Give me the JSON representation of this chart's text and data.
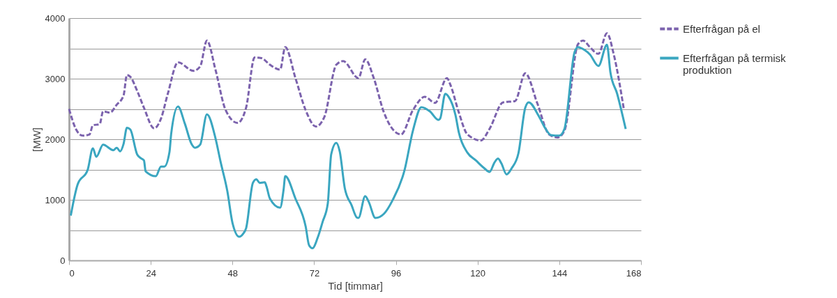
{
  "chart_data": {
    "type": "line",
    "xlabel": "Tid [timmar]",
    "ylabel": "[MW]",
    "xlim": [
      0,
      168
    ],
    "xticks": [
      0,
      24,
      48,
      72,
      96,
      120,
      144,
      168
    ],
    "ylim": [
      0,
      4000
    ],
    "yticks": [
      0,
      {
        "value": 500,
        "label": null
      },
      1000,
      {
        "value": 1500,
        "label": null
      },
      2000,
      {
        "value": 2500,
        "label": null
      },
      3000,
      {
        "value": 3500,
        "label": null
      },
      4000
    ],
    "grid": "y",
    "legend": "right",
    "series": [
      {
        "name": "Efterfrågan på el",
        "color": "#7b62ad",
        "line_style": "dashed",
        "x": [
          0,
          2,
          4,
          6,
          7,
          9,
          10,
          12,
          14,
          16,
          17,
          18,
          20,
          22,
          25,
          27,
          29,
          32,
          36.5,
          38.5,
          40.5,
          43,
          46,
          49.5,
          52,
          54.5,
          56.5,
          59,
          62,
          63.5,
          66.5,
          69.5,
          72.5,
          75,
          78.5,
          80.5,
          85,
          87,
          89.5,
          92.5,
          97.5,
          101,
          104.5,
          107.5,
          111,
          112,
          114.5,
          117,
          121,
          123.5,
          127.5,
          131,
          134,
          137.5,
          141,
          143.5,
          145.5,
          149.5,
          151,
          153,
          155.5,
          158,
          160,
          163
        ],
        "values": [
          2500,
          2170,
          2060,
          2080,
          2230,
          2250,
          2460,
          2440,
          2570,
          2720,
          3060,
          3030,
          2800,
          2520,
          2180,
          2340,
          2750,
          3270,
          3130,
          3200,
          3630,
          3150,
          2480,
          2270,
          2520,
          3350,
          3340,
          3230,
          3150,
          3520,
          3010,
          2480,
          2210,
          2370,
          3230,
          3290,
          3010,
          3320,
          3010,
          2440,
          2080,
          2480,
          2700,
          2600,
          3010,
          2900,
          2440,
          2080,
          1980,
          2170,
          2610,
          2630,
          3090,
          2600,
          2080,
          2030,
          2140,
          3570,
          3630,
          3520,
          3410,
          3750,
          3400,
          2480
        ]
      },
      {
        "name": "Efterfrågan på termisk produktion",
        "color": "#3aa6c0",
        "line_style": "solid",
        "x": [
          0.5,
          2.5,
          5.5,
          7,
          8,
          10,
          13,
          14,
          15,
          16,
          17,
          18,
          20,
          21,
          22,
          22.5,
          25.5,
          27,
          28,
          29.5,
          30,
          32,
          34,
          36,
          37,
          38.5,
          40.5,
          43,
          44.5,
          46.5,
          48,
          50,
          51,
          52,
          54,
          55,
          56,
          57.5,
          58,
          59,
          62,
          63,
          63.5,
          66.5,
          69.5,
          70.5,
          71.5,
          73,
          74.5,
          76,
          77,
          78.5,
          79.5,
          81,
          83,
          84.5,
          85,
          87,
          88,
          90,
          92.5,
          95,
          98.5,
          101,
          103.5,
          106,
          108.5,
          109,
          110.5,
          111.5,
          113.5,
          114.5,
          117,
          119.5,
          122,
          123.5,
          125,
          126,
          127,
          128.5,
          130,
          132,
          134,
          135,
          138,
          140,
          141.5,
          144,
          145.5,
          148.5,
          149.5,
          151.5,
          153,
          155.5,
          158,
          159,
          161,
          163.5
        ],
        "values": [
          740,
          1250,
          1500,
          1850,
          1710,
          1910,
          1820,
          1860,
          1800,
          1920,
          2190,
          2160,
          1750,
          1690,
          1650,
          1470,
          1390,
          1550,
          1550,
          1790,
          2090,
          2540,
          2260,
          1920,
          1860,
          1910,
          2410,
          2020,
          1630,
          1140,
          620,
          390,
          430,
          530,
          1280,
          1340,
          1280,
          1290,
          1220,
          1020,
          870,
          1160,
          1390,
          1020,
          560,
          250,
          200,
          370,
          640,
          940,
          1750,
          1940,
          1800,
          1190,
          910,
          710,
          700,
          1060,
          970,
          700,
          770,
          990,
          1480,
          2140,
          2530,
          2460,
          2320,
          2340,
          2750,
          2700,
          2400,
          2110,
          1780,
          1650,
          1520,
          1460,
          1620,
          1680,
          1600,
          1420,
          1520,
          1770,
          2520,
          2610,
          2380,
          2170,
          2070,
          2060,
          2170,
          3440,
          3520,
          3470,
          3400,
          3210,
          3560,
          3110,
          2750,
          2170
        ]
      }
    ]
  }
}
